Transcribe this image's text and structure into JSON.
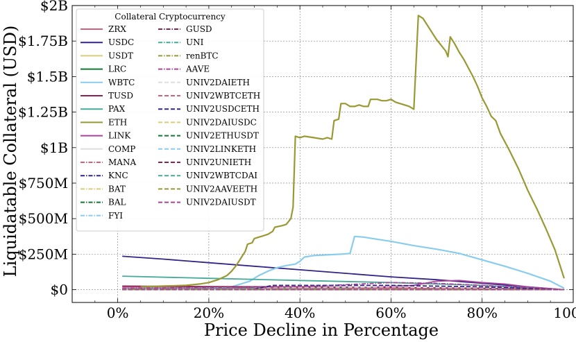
{
  "chart_data": {
    "type": "line",
    "xlabel": "Price Decline in Percentage",
    "ylabel": "Liquidatable Collateral (USD)",
    "x_unit": "percent",
    "xlim": [
      -10,
      100
    ],
    "ylim": [
      -0.09,
      2.0
    ],
    "y_unit": "USD billions",
    "xticks": [
      0,
      20,
      40,
      60,
      80,
      100
    ],
    "xtick_labels": [
      "0%",
      "20%",
      "40%",
      "60%",
      "80%",
      "100%"
    ],
    "yticks": [
      0,
      0.25,
      0.5,
      0.75,
      1.0,
      1.25,
      1.5,
      1.75,
      2.0
    ],
    "ytick_labels": [
      "$0",
      "$250M",
      "$500M",
      "$750M",
      "$1B",
      "$1.25B",
      "$1.5B",
      "$1.75B",
      "$2B"
    ],
    "grid": true,
    "legend": {
      "title": "Collateral Cryptocurrency",
      "placement": "top-left",
      "columns": 2
    },
    "series": [
      {
        "name": "ZRX",
        "color": "#d35f7a",
        "style": "solid",
        "points": [
          [
            1,
            0.02
          ],
          [
            30,
            0.015
          ],
          [
            60,
            0.012
          ],
          [
            90,
            0.006
          ],
          [
            98,
            0.0
          ]
        ]
      },
      {
        "name": "USDC",
        "color": "#332288",
        "style": "solid",
        "points": [
          [
            1,
            0.235
          ],
          [
            10,
            0.215
          ],
          [
            20,
            0.19
          ],
          [
            30,
            0.165
          ],
          [
            40,
            0.14
          ],
          [
            50,
            0.115
          ],
          [
            60,
            0.09
          ],
          [
            70,
            0.07
          ],
          [
            80,
            0.045
          ],
          [
            90,
            0.02
          ],
          [
            98,
            0.0
          ]
        ]
      },
      {
        "name": "USDT",
        "color": "#ddcc77",
        "style": "solid",
        "points": [
          [
            1,
            0.005
          ],
          [
            50,
            0.004
          ],
          [
            98,
            0.0
          ]
        ]
      },
      {
        "name": "LRC",
        "color": "#117733",
        "style": "solid",
        "points": [
          [
            1,
            0.002
          ],
          [
            98,
            0.0
          ]
        ]
      },
      {
        "name": "WBTC",
        "color": "#88ccee",
        "style": "solid",
        "points": [
          [
            1,
            0.01
          ],
          [
            20,
            0.01
          ],
          [
            25,
            0.02
          ],
          [
            29,
            0.06
          ],
          [
            31,
            0.1
          ],
          [
            33,
            0.13
          ],
          [
            35,
            0.155
          ],
          [
            37,
            0.17
          ],
          [
            39,
            0.18
          ],
          [
            40,
            0.2
          ],
          [
            41,
            0.23
          ],
          [
            43,
            0.24
          ],
          [
            46,
            0.245
          ],
          [
            49,
            0.25
          ],
          [
            51,
            0.255
          ],
          [
            52,
            0.375
          ],
          [
            54,
            0.37
          ],
          [
            57,
            0.355
          ],
          [
            60,
            0.34
          ],
          [
            65,
            0.31
          ],
          [
            70,
            0.285
          ],
          [
            75,
            0.255
          ],
          [
            80,
            0.21
          ],
          [
            85,
            0.165
          ],
          [
            90,
            0.115
          ],
          [
            95,
            0.06
          ],
          [
            98,
            0.01
          ]
        ]
      },
      {
        "name": "TUSD",
        "color": "#882255",
        "style": "solid",
        "points": [
          [
            1,
            0.025
          ],
          [
            20,
            0.022
          ],
          [
            40,
            0.02
          ],
          [
            60,
            0.015
          ],
          [
            80,
            0.01
          ],
          [
            98,
            0.0
          ]
        ]
      },
      {
        "name": "PAX",
        "color": "#44aa99",
        "style": "solid",
        "points": [
          [
            1,
            0.095
          ],
          [
            20,
            0.08
          ],
          [
            40,
            0.065
          ],
          [
            60,
            0.05
          ],
          [
            80,
            0.03
          ],
          [
            98,
            0.0
          ]
        ]
      },
      {
        "name": "ETH",
        "color": "#999933",
        "style": "solid",
        "points": [
          [
            5,
            0.02
          ],
          [
            10,
            0.025
          ],
          [
            15,
            0.03
          ],
          [
            18,
            0.04
          ],
          [
            20,
            0.05
          ],
          [
            22,
            0.07
          ],
          [
            24,
            0.1
          ],
          [
            25,
            0.13
          ],
          [
            26,
            0.17
          ],
          [
            27,
            0.22
          ],
          [
            28,
            0.27
          ],
          [
            28.5,
            0.32
          ],
          [
            29.5,
            0.33
          ],
          [
            30,
            0.36
          ],
          [
            31,
            0.37
          ],
          [
            32,
            0.38
          ],
          [
            33,
            0.39
          ],
          [
            34,
            0.41
          ],
          [
            34.5,
            0.44
          ],
          [
            36,
            0.45
          ],
          [
            37,
            0.46
          ],
          [
            38,
            0.5
          ],
          [
            38.5,
            0.58
          ],
          [
            39,
            1.08
          ],
          [
            40,
            1.07
          ],
          [
            41,
            1.08
          ],
          [
            43,
            1.07
          ],
          [
            45,
            1.06
          ],
          [
            46,
            1.07
          ],
          [
            47,
            1.06
          ],
          [
            47.5,
            1.19
          ],
          [
            48.5,
            1.2
          ],
          [
            49,
            1.31
          ],
          [
            50,
            1.31
          ],
          [
            51,
            1.29
          ],
          [
            52,
            1.29
          ],
          [
            53,
            1.3
          ],
          [
            54,
            1.29
          ],
          [
            55,
            1.29
          ],
          [
            55.5,
            1.34
          ],
          [
            57,
            1.34
          ],
          [
            58,
            1.33
          ],
          [
            59,
            1.33
          ],
          [
            60,
            1.34
          ],
          [
            61,
            1.32
          ],
          [
            62,
            1.31
          ],
          [
            63,
            1.3
          ],
          [
            64,
            1.29
          ],
          [
            65,
            1.27
          ],
          [
            66,
            1.93
          ],
          [
            67,
            1.91
          ],
          [
            68,
            1.86
          ],
          [
            69,
            1.81
          ],
          [
            70,
            1.76
          ],
          [
            71,
            1.72
          ],
          [
            72,
            1.68
          ],
          [
            72.5,
            1.64
          ],
          [
            73,
            1.78
          ],
          [
            74,
            1.73
          ],
          [
            75,
            1.67
          ],
          [
            76,
            1.62
          ],
          [
            77,
            1.56
          ],
          [
            78,
            1.5
          ],
          [
            79,
            1.43
          ],
          [
            80,
            1.35
          ],
          [
            81,
            1.29
          ],
          [
            82,
            1.22
          ],
          [
            83,
            1.19
          ],
          [
            84,
            1.1
          ],
          [
            86,
            0.98
          ],
          [
            88,
            0.85
          ],
          [
            90,
            0.7
          ],
          [
            92,
            0.57
          ],
          [
            94,
            0.43
          ],
          [
            96,
            0.28
          ],
          [
            98,
            0.08
          ]
        ]
      },
      {
        "name": "LINK",
        "color": "#aa4499",
        "style": "solid",
        "points": [
          [
            1,
            0.005
          ],
          [
            50,
            0.01
          ],
          [
            65,
            0.03
          ],
          [
            70,
            0.06
          ],
          [
            75,
            0.065
          ],
          [
            80,
            0.05
          ],
          [
            85,
            0.04
          ],
          [
            90,
            0.02
          ],
          [
            98,
            0.0
          ]
        ]
      },
      {
        "name": "COMP",
        "color": "#dddddd",
        "style": "solid",
        "points": [
          [
            1,
            0.003
          ],
          [
            98,
            0.0
          ]
        ]
      },
      {
        "name": "MANA",
        "color": "#d35f7a",
        "style": "dashdot",
        "points": [
          [
            1,
            0.002
          ],
          [
            98,
            0.0
          ]
        ]
      },
      {
        "name": "KNC",
        "color": "#332288",
        "style": "dashdot",
        "points": [
          [
            1,
            0.003
          ],
          [
            98,
            0.0
          ]
        ]
      },
      {
        "name": "BAT",
        "color": "#ddcc77",
        "style": "dashdot",
        "points": [
          [
            1,
            0.004
          ],
          [
            98,
            0.0
          ]
        ]
      },
      {
        "name": "BAL",
        "color": "#117733",
        "style": "dashdot",
        "points": [
          [
            1,
            0.002
          ],
          [
            98,
            0.0
          ]
        ]
      },
      {
        "name": "FYI",
        "color": "#88ccee",
        "style": "dashdot",
        "points": [
          [
            1,
            0.002
          ],
          [
            98,
            0.0
          ]
        ]
      },
      {
        "name": "GUSD",
        "color": "#882255",
        "style": "dashdot",
        "points": [
          [
            1,
            0.003
          ],
          [
            98,
            0.0
          ]
        ]
      },
      {
        "name": "UNI",
        "color": "#44aa99",
        "style": "dashdot",
        "points": [
          [
            1,
            0.005
          ],
          [
            50,
            0.01
          ],
          [
            98,
            0.0
          ]
        ]
      },
      {
        "name": "renBTC",
        "color": "#999933",
        "style": "dashdot",
        "points": [
          [
            1,
            0.003
          ],
          [
            98,
            0.0
          ]
        ]
      },
      {
        "name": "AAVE",
        "color": "#aa4499",
        "style": "dashdot",
        "points": [
          [
            1,
            0.01
          ],
          [
            40,
            0.02
          ],
          [
            60,
            0.05
          ],
          [
            70,
            0.045
          ],
          [
            80,
            0.03
          ],
          [
            98,
            0.0
          ]
        ]
      },
      {
        "name": "UNIV2DAIETH",
        "color": "#dddddd",
        "style": "dashed",
        "points": [
          [
            30,
            0.01
          ],
          [
            60,
            0.02
          ],
          [
            98,
            0.0
          ]
        ]
      },
      {
        "name": "UNIV2WBTCETH",
        "color": "#d35f7a",
        "style": "dashed",
        "points": [
          [
            30,
            0.005
          ],
          [
            60,
            0.01
          ],
          [
            98,
            0.0
          ]
        ]
      },
      {
        "name": "UNIV2USDCETH",
        "color": "#332288",
        "style": "dashed",
        "points": [
          [
            30,
            0.005
          ],
          [
            34,
            0.03
          ],
          [
            60,
            0.03
          ],
          [
            80,
            0.02
          ],
          [
            98,
            0.0
          ]
        ]
      },
      {
        "name": "UNIV2DAIUSDC",
        "color": "#ddcc77",
        "style": "dashed",
        "points": [
          [
            1,
            0.003
          ],
          [
            98,
            0.0
          ]
        ]
      },
      {
        "name": "UNIV2ETHUSDT",
        "color": "#117733",
        "style": "dashed",
        "points": [
          [
            1,
            0.003
          ],
          [
            98,
            0.0
          ]
        ]
      },
      {
        "name": "UNIV2LINKETH",
        "color": "#88ccee",
        "style": "dashed",
        "points": [
          [
            1,
            0.003
          ],
          [
            98,
            0.0
          ]
        ]
      },
      {
        "name": "UNIV2UNIETH",
        "color": "#882255",
        "style": "dashed",
        "points": [
          [
            1,
            0.003
          ],
          [
            98,
            0.0
          ]
        ]
      },
      {
        "name": "UNIV2WBTCDAI",
        "color": "#44aa99",
        "style": "dashed",
        "points": [
          [
            1,
            0.002
          ],
          [
            98,
            0.0
          ]
        ]
      },
      {
        "name": "UNIV2AAVEETH",
        "color": "#999933",
        "style": "dashed",
        "points": [
          [
            1,
            0.002
          ],
          [
            98,
            0.0
          ]
        ]
      },
      {
        "name": "UNIV2DAIUSDT",
        "color": "#aa4499",
        "style": "dashed",
        "points": [
          [
            1,
            0.0
          ],
          [
            98,
            0.0
          ]
        ]
      }
    ]
  }
}
